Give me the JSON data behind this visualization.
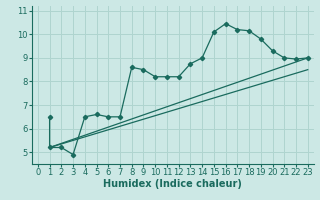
{
  "line1_x": [
    1,
    1,
    2,
    3,
    4,
    5,
    6,
    7,
    8,
    9,
    10,
    11,
    12,
    13,
    14,
    15,
    16,
    17,
    18,
    19,
    20,
    21,
    22,
    23
  ],
  "line1_y": [
    6.5,
    5.2,
    5.2,
    4.9,
    6.5,
    6.6,
    6.5,
    6.5,
    8.6,
    8.5,
    8.2,
    8.2,
    8.2,
    8.75,
    9.0,
    10.1,
    10.45,
    10.2,
    10.15,
    9.8,
    9.3,
    9.0,
    8.95,
    9.0
  ],
  "line2_x": [
    1,
    23
  ],
  "line2_y": [
    5.2,
    9.0
  ],
  "line3_x": [
    1,
    23
  ],
  "line3_y": [
    5.2,
    8.5
  ],
  "color": "#1a6b5e",
  "bg_color": "#cce8e5",
  "grid_color": "#afd4cf",
  "xlabel": "Humidex (Indice chaleur)",
  "xlim": [
    -0.5,
    23.5
  ],
  "ylim": [
    4.5,
    11.2
  ],
  "xticks": [
    0,
    1,
    2,
    3,
    4,
    5,
    6,
    7,
    8,
    9,
    10,
    11,
    12,
    13,
    14,
    15,
    16,
    17,
    18,
    19,
    20,
    21,
    22,
    23
  ],
  "yticks": [
    5,
    6,
    7,
    8,
    9,
    10,
    11
  ],
  "xlabel_fontsize": 7.0,
  "tick_fontsize": 6.0
}
